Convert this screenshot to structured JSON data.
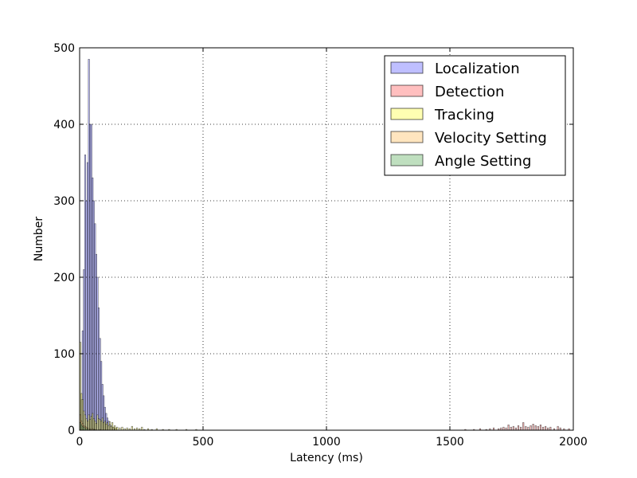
{
  "chart_data": {
    "type": "bar",
    "xlabel": "Latency (ms)",
    "ylabel": "Number",
    "xlim": [
      0,
      2000
    ],
    "ylim": [
      0,
      500
    ],
    "x_ticks": [
      0,
      500,
      1000,
      1500,
      2000
    ],
    "y_ticks": [
      0,
      100,
      200,
      300,
      400,
      500
    ],
    "x_tick_labels": [
      "0",
      "500",
      "1000",
      "1500",
      "2000"
    ],
    "y_tick_labels": [
      "0",
      "100",
      "200",
      "300",
      "400",
      "500"
    ],
    "grid": true,
    "legend_position": "top-right",
    "bin_width": 5,
    "series": [
      {
        "name": "Localization",
        "color": "#8080ff",
        "bins": [
          [
            0,
            5
          ],
          [
            5,
            40
          ],
          [
            10,
            130
          ],
          [
            15,
            210
          ],
          [
            20,
            360
          ],
          [
            25,
            300
          ],
          [
            30,
            350
          ],
          [
            35,
            485
          ],
          [
            40,
            400
          ],
          [
            45,
            400
          ],
          [
            50,
            330
          ],
          [
            55,
            300
          ],
          [
            60,
            270
          ],
          [
            65,
            230
          ],
          [
            70,
            200
          ],
          [
            75,
            160
          ],
          [
            80,
            120
          ],
          [
            85,
            90
          ],
          [
            90,
            60
          ],
          [
            95,
            45
          ],
          [
            100,
            30
          ],
          [
            105,
            22
          ],
          [
            110,
            16
          ],
          [
            115,
            12
          ],
          [
            120,
            8
          ],
          [
            125,
            6
          ],
          [
            130,
            4
          ],
          [
            135,
            3
          ],
          [
            140,
            2
          ]
        ]
      },
      {
        "name": "Detection",
        "color": "#ff8080",
        "bins": [
          [
            1560,
            1
          ],
          [
            1595,
            1
          ],
          [
            1620,
            2
          ],
          [
            1645,
            1
          ],
          [
            1660,
            2
          ],
          [
            1675,
            3
          ],
          [
            1695,
            2
          ],
          [
            1705,
            3
          ],
          [
            1715,
            4
          ],
          [
            1725,
            3
          ],
          [
            1735,
            7
          ],
          [
            1745,
            4
          ],
          [
            1755,
            5
          ],
          [
            1765,
            3
          ],
          [
            1775,
            6
          ],
          [
            1785,
            4
          ],
          [
            1795,
            10
          ],
          [
            1805,
            5
          ],
          [
            1815,
            4
          ],
          [
            1825,
            6
          ],
          [
            1835,
            8
          ],
          [
            1845,
            6
          ],
          [
            1855,
            5
          ],
          [
            1865,
            7
          ],
          [
            1875,
            4
          ],
          [
            1885,
            5
          ],
          [
            1895,
            3
          ],
          [
            1905,
            4
          ],
          [
            1920,
            2
          ],
          [
            1935,
            5
          ],
          [
            1945,
            3
          ],
          [
            1960,
            2
          ],
          [
            1980,
            2
          ]
        ]
      },
      {
        "name": "Tracking",
        "color": "#ffff66",
        "bins": [
          [
            0,
            115
          ],
          [
            5,
            48
          ],
          [
            10,
            40
          ],
          [
            15,
            25
          ],
          [
            20,
            20
          ],
          [
            25,
            15
          ],
          [
            30,
            12
          ],
          [
            35,
            20
          ],
          [
            40,
            14
          ],
          [
            45,
            18
          ],
          [
            50,
            22
          ],
          [
            55,
            15
          ],
          [
            60,
            12
          ],
          [
            65,
            9
          ],
          [
            70,
            20
          ],
          [
            75,
            15
          ],
          [
            80,
            14
          ],
          [
            85,
            12
          ],
          [
            90,
            16
          ],
          [
            95,
            10
          ],
          [
            100,
            12
          ],
          [
            105,
            8
          ],
          [
            110,
            10
          ],
          [
            115,
            6
          ],
          [
            120,
            11
          ],
          [
            125,
            5
          ],
          [
            130,
            10
          ],
          [
            135,
            4
          ],
          [
            140,
            6
          ],
          [
            145,
            3
          ],
          [
            150,
            4
          ],
          [
            160,
            3
          ],
          [
            170,
            4
          ],
          [
            180,
            2
          ],
          [
            190,
            3
          ],
          [
            200,
            2
          ],
          [
            210,
            5
          ],
          [
            220,
            2
          ],
          [
            230,
            3
          ],
          [
            240,
            2
          ],
          [
            250,
            4
          ],
          [
            260,
            1
          ],
          [
            275,
            2
          ],
          [
            290,
            1
          ],
          [
            310,
            2
          ],
          [
            335,
            1
          ],
          [
            360,
            1
          ],
          [
            390,
            1
          ],
          [
            430,
            1
          ],
          [
            470,
            1
          ]
        ]
      },
      {
        "name": "Velocity Setting",
        "color": "#ffcc80",
        "bins": [
          [
            0,
            20
          ],
          [
            5,
            12
          ],
          [
            10,
            9
          ],
          [
            15,
            6
          ],
          [
            20,
            5
          ],
          [
            25,
            4
          ],
          [
            30,
            3
          ],
          [
            40,
            2
          ],
          [
            50,
            2
          ],
          [
            60,
            1
          ],
          [
            80,
            1
          ]
        ]
      },
      {
        "name": "Angle Setting",
        "color": "#80c080",
        "bins": [
          [
            0,
            10
          ],
          [
            5,
            7
          ],
          [
            10,
            5
          ],
          [
            15,
            4
          ],
          [
            20,
            3
          ],
          [
            25,
            2
          ],
          [
            30,
            2
          ],
          [
            40,
            1
          ],
          [
            55,
            1
          ]
        ]
      }
    ]
  }
}
